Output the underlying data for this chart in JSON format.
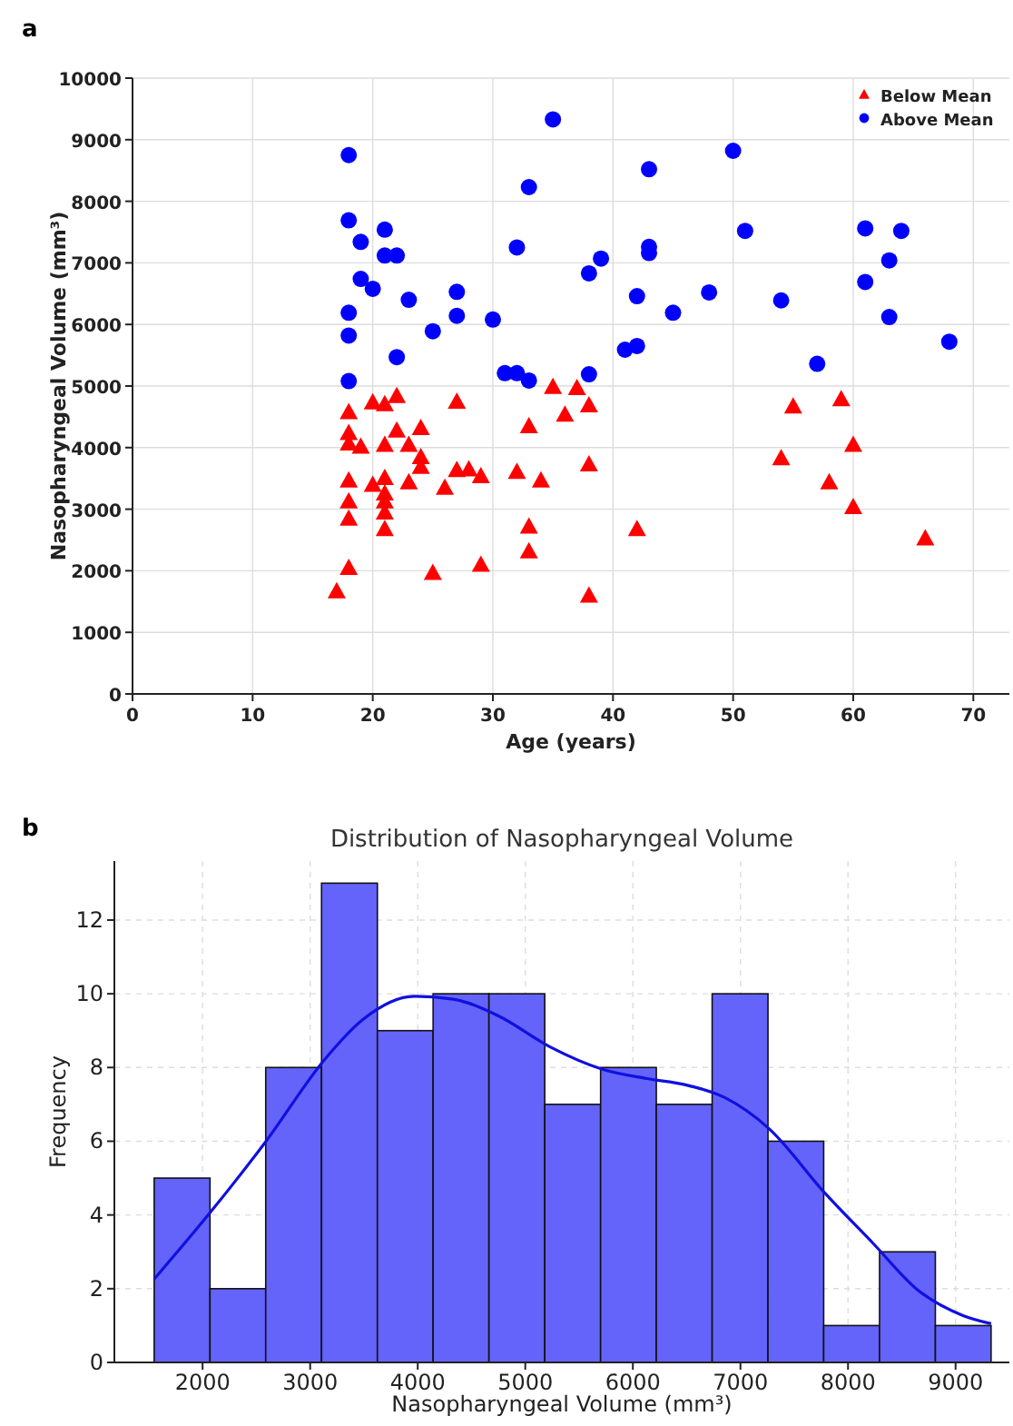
{
  "chart_data": [
    {
      "type": "scatter",
      "annotations": [
        "a"
      ],
      "xlabel": "Age (years)",
      "ylabel": "Nasopharyngeal Volume (mm³)",
      "xlim": [
        0,
        73
      ],
      "ylim": [
        0,
        10000
      ],
      "xticks": [
        0,
        10,
        20,
        30,
        40,
        50,
        60,
        70
      ],
      "yticks": [
        0,
        1000,
        2000,
        3000,
        4000,
        5000,
        6000,
        7000,
        8000,
        9000,
        10000
      ],
      "grid": true,
      "legend": "top right",
      "series": [
        {
          "name": "Below Mean",
          "color": "#ff0000",
          "marker": "triangle",
          "x": [
            17,
            18,
            18,
            18,
            18,
            18,
            18,
            18,
            19,
            20,
            21,
            22,
            20,
            21,
            21,
            21,
            21,
            21,
            21,
            22,
            23,
            23,
            24,
            24,
            24,
            25,
            26,
            27,
            27,
            28,
            29,
            29,
            32,
            33,
            33,
            33,
            34,
            35,
            36,
            37,
            38,
            38,
            42,
            38,
            55,
            59,
            60,
            54,
            58,
            60,
            66
          ],
          "values": [
            1670,
            2050,
            2850,
            3130,
            3470,
            4070,
            4240,
            4580,
            4020,
            4740,
            4710,
            4840,
            3400,
            4050,
            3510,
            3260,
            3130,
            2950,
            2680,
            4280,
            4050,
            3440,
            4320,
            3850,
            3690,
            1970,
            3350,
            4750,
            3640,
            3650,
            3540,
            2100,
            3610,
            4350,
            2720,
            2320,
            3470,
            4990,
            4540,
            4970,
            4690,
            3730,
            2680,
            1600,
            4670,
            4790,
            4050,
            3830,
            3440,
            3040,
            2530
          ]
        },
        {
          "name": "Above Mean",
          "color": "#0000ff",
          "marker": "circle",
          "x": [
            18,
            18,
            19,
            21,
            21,
            22,
            19,
            20,
            23,
            27,
            27,
            18,
            18,
            25,
            30,
            22,
            18,
            31,
            32,
            33,
            32,
            33,
            35,
            38,
            39,
            43,
            43,
            43,
            42,
            45,
            48,
            42,
            41,
            38,
            50,
            51,
            54,
            57,
            61,
            61,
            63,
            64,
            63,
            68
          ],
          "values": [
            8750,
            7690,
            7340,
            7540,
            7120,
            7120,
            6740,
            6580,
            6400,
            6530,
            6140,
            6190,
            5820,
            5890,
            6080,
            5470,
            5080,
            5210,
            5210,
            5090,
            7250,
            8230,
            9330,
            6830,
            7070,
            8520,
            7260,
            7160,
            6460,
            6190,
            6520,
            5650,
            5590,
            5190,
            8820,
            7520,
            6390,
            5360,
            7560,
            6690,
            7040,
            7520,
            6120,
            5720
          ]
        }
      ]
    },
    {
      "type": "histogram",
      "annotations": [
        "b"
      ],
      "title": "Distribution of Nasopharyngeal Volume",
      "xlabel": "Nasopharyngeal Volume (mm³)",
      "ylabel": "Frequency",
      "xlim": [
        1180,
        9500
      ],
      "ylim": [
        0,
        13.6
      ],
      "xticks": [
        2000,
        3000,
        4000,
        5000,
        6000,
        7000,
        8000,
        9000
      ],
      "yticks": [
        0,
        2,
        4,
        6,
        8,
        10,
        12
      ],
      "grid": true,
      "color": "#6464fa",
      "bins": [
        1550,
        2069,
        2587,
        3106,
        3625,
        4143,
        4662,
        5181,
        5700,
        6218,
        6737,
        7256,
        7774,
        8293,
        8812,
        9330
      ],
      "values": [
        5,
        2,
        8,
        13,
        9,
        10,
        10,
        7,
        8,
        7,
        10,
        6,
        1,
        3,
        1
      ],
      "series": [
        {
          "type": "line",
          "color": "#1010e0",
          "x": [
            1550,
            2080,
            2590,
            3130,
            3490,
            3970,
            4330,
            4750,
            5230,
            5710,
            6130,
            6490,
            6850,
            7270,
            7780,
            8230,
            8650,
            9070,
            9330
          ],
          "values": [
            2.26,
            4.1,
            6.0,
            8.2,
            9.3,
            9.93,
            9.85,
            9.4,
            8.56,
            7.96,
            7.7,
            7.53,
            7.19,
            6.33,
            4.61,
            3.24,
            1.96,
            1.27,
            1.05
          ]
        }
      ]
    }
  ]
}
